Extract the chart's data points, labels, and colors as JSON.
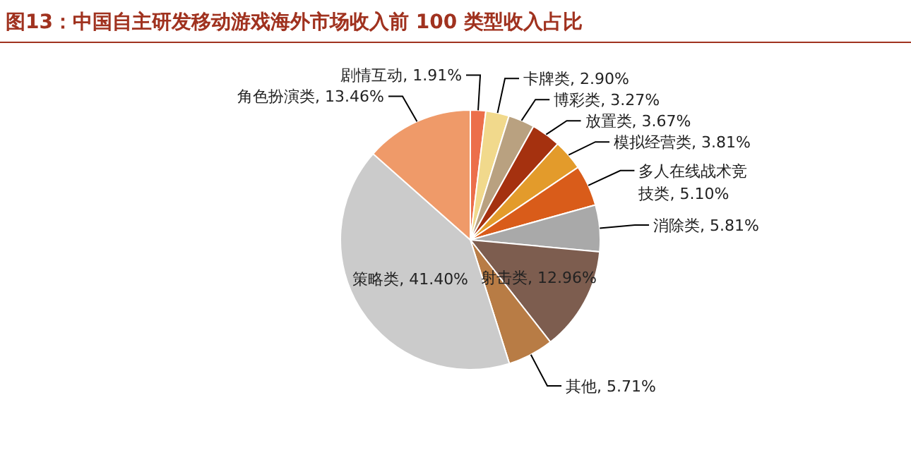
{
  "chart_data": {
    "type": "pie",
    "title": "图13：中国自主研发移动游戏海外市场收入前 100 类型收入占比",
    "categories": [
      "剧情互动",
      "卡牌类",
      "博彩类",
      "放置类",
      "模拟经营类",
      "多人在线战术竞技类",
      "消除类",
      "射击类",
      "其他",
      "策略类",
      "角色扮演类"
    ],
    "values": [
      1.91,
      2.9,
      3.27,
      3.67,
      3.81,
      5.1,
      5.81,
      12.96,
      5.71,
      41.4,
      13.46
    ],
    "value_labels": [
      "1.91%",
      "2.90%",
      "3.27%",
      "3.67%",
      "3.81%",
      "5.10%",
      "5.81%",
      "12.96%",
      "5.71%",
      "41.40%",
      "13.46%"
    ],
    "colors": [
      "#ec6f4b",
      "#f1d98c",
      "#b9a180",
      "#a5310f",
      "#e39b2b",
      "#d95c1a",
      "#a9a9a9",
      "#7d5d4f",
      "#b87c45",
      "#cbcbcb",
      "#ef9a69"
    ]
  }
}
